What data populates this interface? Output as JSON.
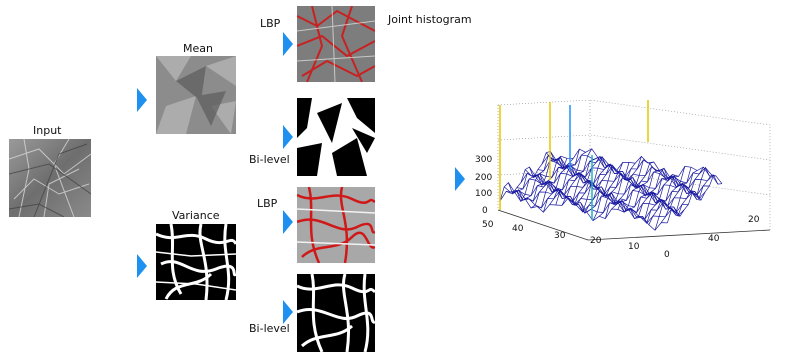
{
  "labels": {
    "input": "Input",
    "mean": "Mean",
    "variance": "Variance",
    "lbp_top": "LBP",
    "bilevel_top": "Bi-level",
    "lbp_bottom": "LBP",
    "bilevel_bottom": "Bi-level",
    "joint_histogram": "Joint histogram"
  },
  "colors": {
    "arrow": "#1e90f0",
    "mesh": "#1a1aa0",
    "lbp_overlay": "#d01818"
  },
  "icons": [
    "right-triangle-arrow"
  ],
  "chart_data": {
    "type": "surface",
    "title": "Joint histogram",
    "z_ticks": [
      "0",
      "100",
      "200",
      "300"
    ],
    "x_ticks": [
      "50",
      "40",
      "30",
      "20",
      "10",
      "0"
    ],
    "y_ticks": [
      "20",
      "40"
    ],
    "zlim": [
      0,
      300
    ],
    "grid": true
  }
}
